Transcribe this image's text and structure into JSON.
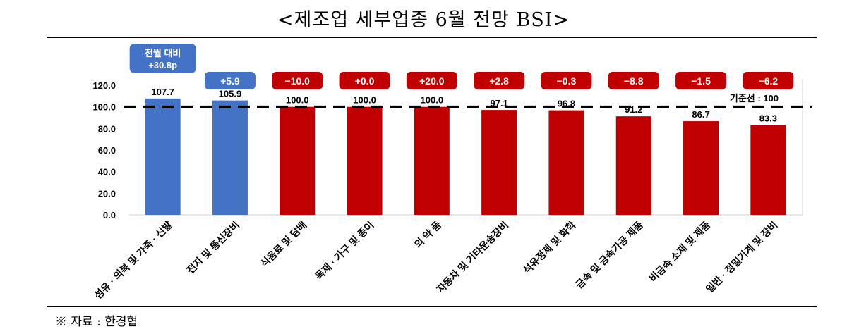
{
  "title": "<제조업 세부업종 6월 전망 BSI>",
  "source_note": "※ 자료 : 한경협",
  "chart_data": {
    "type": "bar",
    "title": "<제조업 세부업종 6월 전망 BSI>",
    "categories": [
      "섬유·의복 및 가죽·신발",
      "전자 및 통신장비",
      "식음료 및 담배",
      "목재·가구 및 종이",
      "의 약 품",
      "자동차 및 기타운송장비",
      "석유정제 및 화학",
      "금속 및 금속가공 제품",
      "비금속 소재 및 제품",
      "일반·정밀기계 및 장비"
    ],
    "category_labels": [
      "섬유 · 의복 및 가죽 · 신발",
      "전자 및 통신장비",
      "식음료 및 담배",
      "목재 · 가구 및 종이",
      "의 약 품",
      "자동차 및 기타운송장비",
      "석유정제 및 화학",
      "금속 및 금속가공 제품",
      "비금속 소재 및 제품",
      "일반 · 정밀기계 및 장비"
    ],
    "values": [
      107.7,
      105.9,
      100.0,
      100.0,
      100.0,
      97.1,
      96.8,
      91.2,
      86.7,
      83.3
    ],
    "value_labels": [
      "107.7",
      "105.9",
      "100.0",
      "100.0",
      "100.0",
      "97.1",
      "96.8",
      "91.2",
      "86.7",
      "83.3"
    ],
    "changes": [
      "+30.8p",
      "+5.9",
      "−10.0",
      "+0.0",
      "+20.0",
      "+2.8",
      "−0.3",
      "−8.8",
      "−1.5",
      "−6.2"
    ],
    "change_header": "전월 대비",
    "ylim": [
      0,
      120
    ],
    "yticks": [
      "0.0",
      "20.0",
      "40.0",
      "60.0",
      "80.0",
      "100.0",
      "120.0"
    ],
    "baseline": 100,
    "baseline_label": "기준선 : 100",
    "xlabel": "",
    "ylabel": "",
    "grid": false,
    "colors": {
      "above_baseline": "#4472C4",
      "at_or_below_baseline": "#C00000",
      "badge_text": "#FFFFFF",
      "baseline": "#000000"
    }
  }
}
